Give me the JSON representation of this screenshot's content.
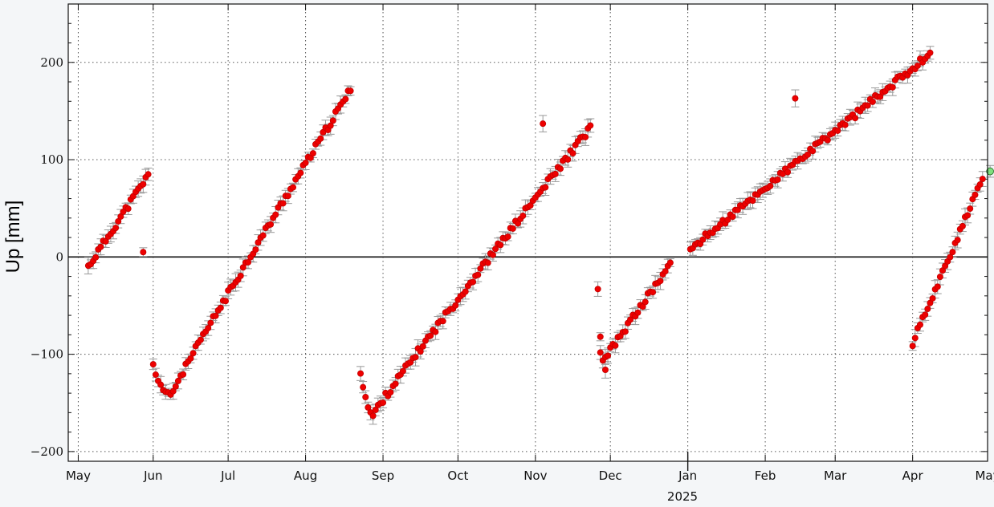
{
  "chart_data": {
    "type": "scatter",
    "title": "",
    "xlabel": "",
    "ylabel": "Up [mm]",
    "year_label": "2025",
    "ylim": [
      -210,
      260
    ],
    "xlim": [
      -1,
      367
    ],
    "grid": true,
    "x_unit": "day",
    "yticks": [
      {
        "value": 200,
        "label": "200"
      },
      {
        "value": 100,
        "label": "100"
      },
      {
        "value": 0,
        "label": "0"
      },
      {
        "value": -100,
        "label": "−100"
      },
      {
        "value": -200,
        "label": "−200"
      }
    ],
    "xticks": [
      {
        "value": 3,
        "label": "May"
      },
      {
        "value": 33,
        "label": "Jun"
      },
      {
        "value": 63,
        "label": "Jul"
      },
      {
        "value": 94,
        "label": "Aug"
      },
      {
        "value": 125,
        "label": "Sep"
      },
      {
        "value": 155,
        "label": "Oct"
      },
      {
        "value": 186,
        "label": "Nov"
      },
      {
        "value": 216,
        "label": "Dec"
      },
      {
        "value": 247,
        "label": "Jan"
      },
      {
        "value": 278,
        "label": "Feb"
      },
      {
        "value": 306,
        "label": "Mar"
      },
      {
        "value": 337,
        "label": "Apr"
      },
      {
        "value": 367,
        "label": "May"
      }
    ],
    "series": [
      {
        "color": "#ee0000",
        "segments": [
          {
            "x0": 7,
            "x1": 31,
            "y0": -10,
            "y1": 84,
            "curve": 0
          },
          {
            "x0": 33,
            "x1": 112,
            "y0": -112,
            "y1": 172,
            "curve": 0,
            "vertex": {
              "x": 40,
              "y": -143
            }
          },
          {
            "x0": 116,
            "x1": 208,
            "y0": -117,
            "y1": 133,
            "curve": 0,
            "vertex": {
              "x": 121,
              "y": -163
            }
          },
          {
            "x0": 212,
            "x1": 240,
            "y0": -100,
            "y1": -8,
            "curve": 0,
            "vertex": {
              "x": 214,
              "y": -105
            }
          },
          {
            "x0": 248,
            "x1": 344,
            "y0": 8,
            "y1": 209,
            "curve": 0
          },
          {
            "x0": 337,
            "x1": 365,
            "y0": -88,
            "y1": 80,
            "curve": 0
          }
        ],
        "extra_points": [
          {
            "x": 29,
            "y": 5
          },
          {
            "x": 211,
            "y": -33
          },
          {
            "x": 212,
            "y": -82
          },
          {
            "x": 214,
            "y": -116
          },
          {
            "x": 290,
            "y": 163
          },
          {
            "x": 189,
            "y": 137
          }
        ]
      },
      {
        "name": "",
        "color": "#7fe07f",
        "points": [
          {
            "x": 368,
            "y": 88
          }
        ]
      }
    ]
  }
}
